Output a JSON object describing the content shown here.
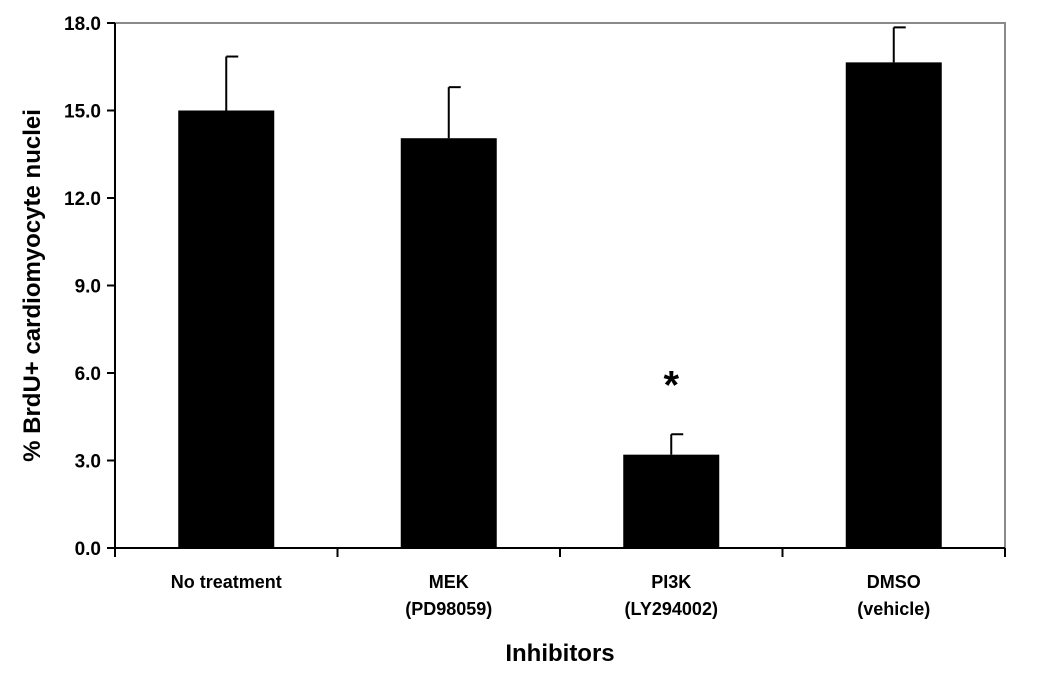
{
  "chart_data": {
    "type": "bar",
    "title": "",
    "xlabel": "Inhibitors",
    "ylabel": "% BrdU+ cardiomyocyte nuclei",
    "ylim": [
      0,
      18
    ],
    "yticks": [
      0,
      3,
      6,
      9,
      12,
      15,
      18
    ],
    "ytick_labels": [
      "0.0",
      "3.0",
      "6.0",
      "9.0",
      "12.0",
      "15.0",
      "18.0"
    ],
    "categories": [
      [
        "No treatment"
      ],
      [
        "MEK",
        "(PD98059)"
      ],
      [
        "PI3K",
        "(LY294002)"
      ],
      [
        "DMSO",
        "(vehicle)"
      ]
    ],
    "values": [
      15.0,
      14.05,
      3.2,
      16.65
    ],
    "error_upper": [
      1.85,
      1.75,
      0.7,
      1.2
    ],
    "annotations": [
      {
        "text": "*",
        "category_index": 2
      }
    ],
    "bar_color": "#000000",
    "grid": false,
    "legend": "none"
  }
}
